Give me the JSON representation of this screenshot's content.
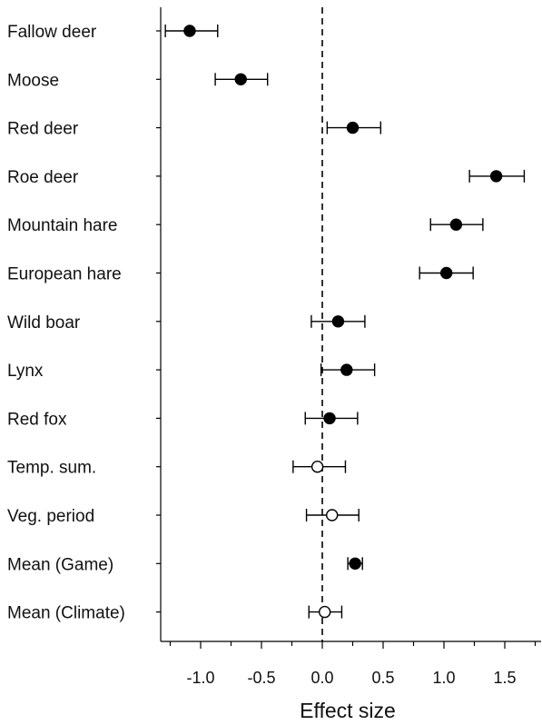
{
  "chart_data": {
    "type": "scatter",
    "subtype": "forest-plot",
    "xlabel": "Effect size",
    "ylabel": "",
    "xlim": [
      -1.35,
      1.75
    ],
    "x_ticks": [
      -1.0,
      -0.5,
      0.0,
      0.5,
      1.0,
      1.5
    ],
    "x_tick_labels": [
      "-1.0",
      "-0.5",
      "0.0",
      "0.5",
      "1.0",
      "1.5"
    ],
    "reference_line": 0.0,
    "grid": false,
    "categories": [
      "Fallow deer",
      "Moose",
      "Red deer",
      "Roe deer",
      "Mountain hare",
      "European hare",
      "Wild boar",
      "Lynx",
      "Red fox",
      "Temp. sum.",
      "Veg. period",
      "Mean (Game)",
      "Mean (Climate)"
    ],
    "estimates": [
      -1.09,
      -0.67,
      0.25,
      1.43,
      1.1,
      1.02,
      0.13,
      0.2,
      0.06,
      -0.04,
      0.08,
      0.27,
      0.02
    ],
    "ci_low": [
      -1.29,
      -0.88,
      0.04,
      1.21,
      0.89,
      0.8,
      -0.09,
      -0.01,
      -0.14,
      -0.24,
      -0.13,
      0.21,
      -0.11
    ],
    "ci_high": [
      -0.86,
      -0.45,
      0.48,
      1.66,
      1.32,
      1.24,
      0.35,
      0.43,
      0.29,
      0.19,
      0.3,
      0.33,
      0.16
    ],
    "marker_fill": [
      "filled",
      "filled",
      "filled",
      "filled",
      "filled",
      "filled",
      "filled",
      "filled",
      "filled",
      "open",
      "open",
      "filled",
      "open"
    ],
    "colors": {
      "marker": "#000000",
      "axis": "#000000",
      "background": "#ffffff"
    }
  }
}
